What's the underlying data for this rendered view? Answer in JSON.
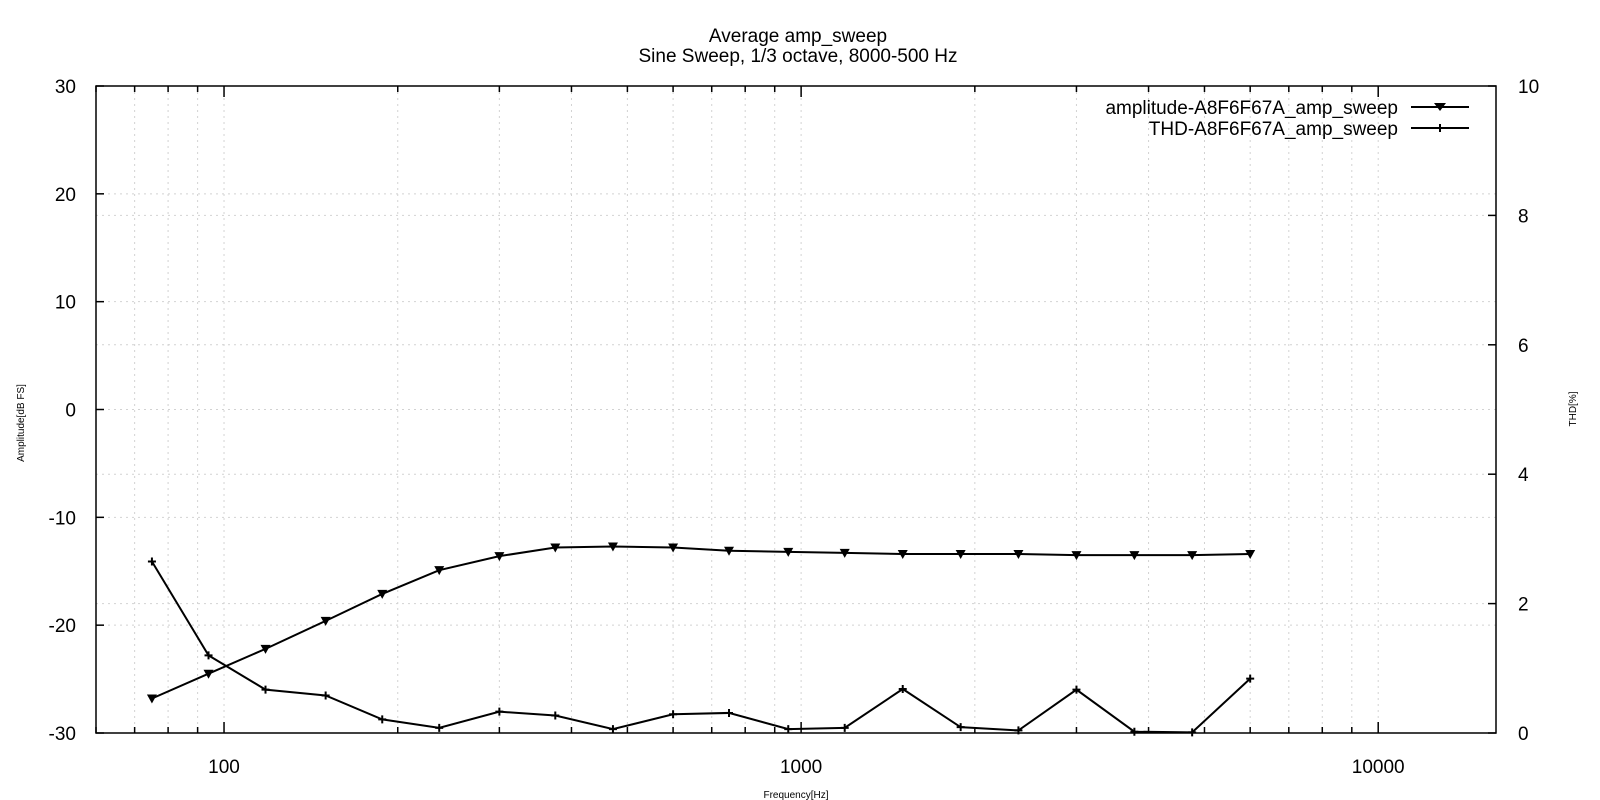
{
  "chart_data": {
    "type": "line",
    "title": "Average amp_sweep",
    "subtitle": "Sine Sweep, 1/3 octave, 8000-500 Hz",
    "xlabel": "Frequency[Hz]",
    "ylabel": "Amplitude[dB FS]",
    "y2label": "THD[%]",
    "xscale": "log",
    "xlim": [
      60,
      16000
    ],
    "ylim": [
      -30,
      30
    ],
    "y2lim": [
      0,
      10
    ],
    "x_tick_labels": [
      "100",
      "1000",
      "10000"
    ],
    "y_tick_labels": [
      "30",
      "20",
      "10",
      "0",
      "-10",
      "-20",
      "-30"
    ],
    "y2_tick_labels": [
      "10",
      "8",
      "6",
      "4",
      "2",
      "0"
    ],
    "grid": true,
    "legend_position": "top-right",
    "series": [
      {
        "name": "amplitude-A8F6F67A_amp_sweep",
        "axis": "left",
        "marker": "triangle-down",
        "color": "#000000",
        "points": [
          [
            75,
            -26.8
          ],
          [
            94,
            -24.5
          ],
          [
            118,
            -22.2
          ],
          [
            150,
            -19.6
          ],
          [
            188,
            -17.1
          ],
          [
            236,
            -14.9
          ],
          [
            300,
            -13.6
          ],
          [
            375,
            -12.8
          ],
          [
            472,
            -12.7
          ],
          [
            600,
            -12.8
          ],
          [
            750,
            -13.1
          ],
          [
            950,
            -13.2
          ],
          [
            1190,
            -13.3
          ],
          [
            1500,
            -13.4
          ],
          [
            1890,
            -13.4
          ],
          [
            2380,
            -13.4
          ],
          [
            3000,
            -13.5
          ],
          [
            3780,
            -13.5
          ],
          [
            4760,
            -13.5
          ],
          [
            6000,
            -13.4
          ]
        ]
      },
      {
        "name": "THD-A8F6F67A_amp_sweep",
        "axis": "right",
        "marker": "plus",
        "color": "#000000",
        "points": [
          [
            75,
            2.65
          ],
          [
            94,
            1.2
          ],
          [
            118,
            0.67
          ],
          [
            150,
            0.58
          ],
          [
            188,
            0.21
          ],
          [
            236,
            0.08
          ],
          [
            300,
            0.33
          ],
          [
            375,
            0.27
          ],
          [
            472,
            0.06
          ],
          [
            600,
            0.29
          ],
          [
            750,
            0.31
          ],
          [
            950,
            0.06
          ],
          [
            1190,
            0.08
          ],
          [
            1500,
            0.68
          ],
          [
            1890,
            0.09
          ],
          [
            2380,
            0.04
          ],
          [
            3000,
            0.67
          ],
          [
            3780,
            0.02
          ],
          [
            4760,
            0.01
          ],
          [
            6000,
            0.84
          ]
        ]
      }
    ]
  }
}
